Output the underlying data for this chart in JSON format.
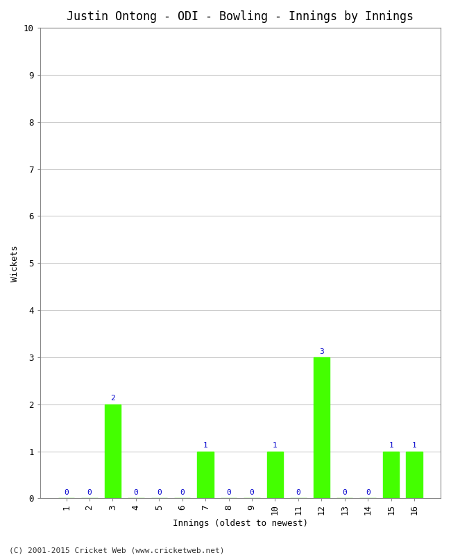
{
  "title": "Justin Ontong - ODI - Bowling - Innings by Innings",
  "xlabel": "Innings (oldest to newest)",
  "ylabel": "Wickets",
  "categories": [
    1,
    2,
    3,
    4,
    5,
    6,
    7,
    8,
    9,
    10,
    11,
    12,
    13,
    14,
    15,
    16
  ],
  "values": [
    0,
    0,
    2,
    0,
    0,
    0,
    1,
    0,
    0,
    1,
    0,
    3,
    0,
    0,
    1,
    1
  ],
  "bar_color": "#44ff00",
  "bar_edge_color": "#44ff00",
  "label_color": "#0000cc",
  "background_color": "#ffffff",
  "plot_bg_color": "#ffffff",
  "ylim": [
    0,
    10
  ],
  "yticks": [
    0,
    1,
    2,
    3,
    4,
    5,
    6,
    7,
    8,
    9,
    10
  ],
  "grid_color": "#cccccc",
  "title_fontsize": 12,
  "axis_label_fontsize": 9,
  "tick_fontsize": 9,
  "annotation_fontsize": 8,
  "copyright_text": "(C) 2001-2015 Cricket Web (www.cricketweb.net)",
  "copyright_fontsize": 8
}
